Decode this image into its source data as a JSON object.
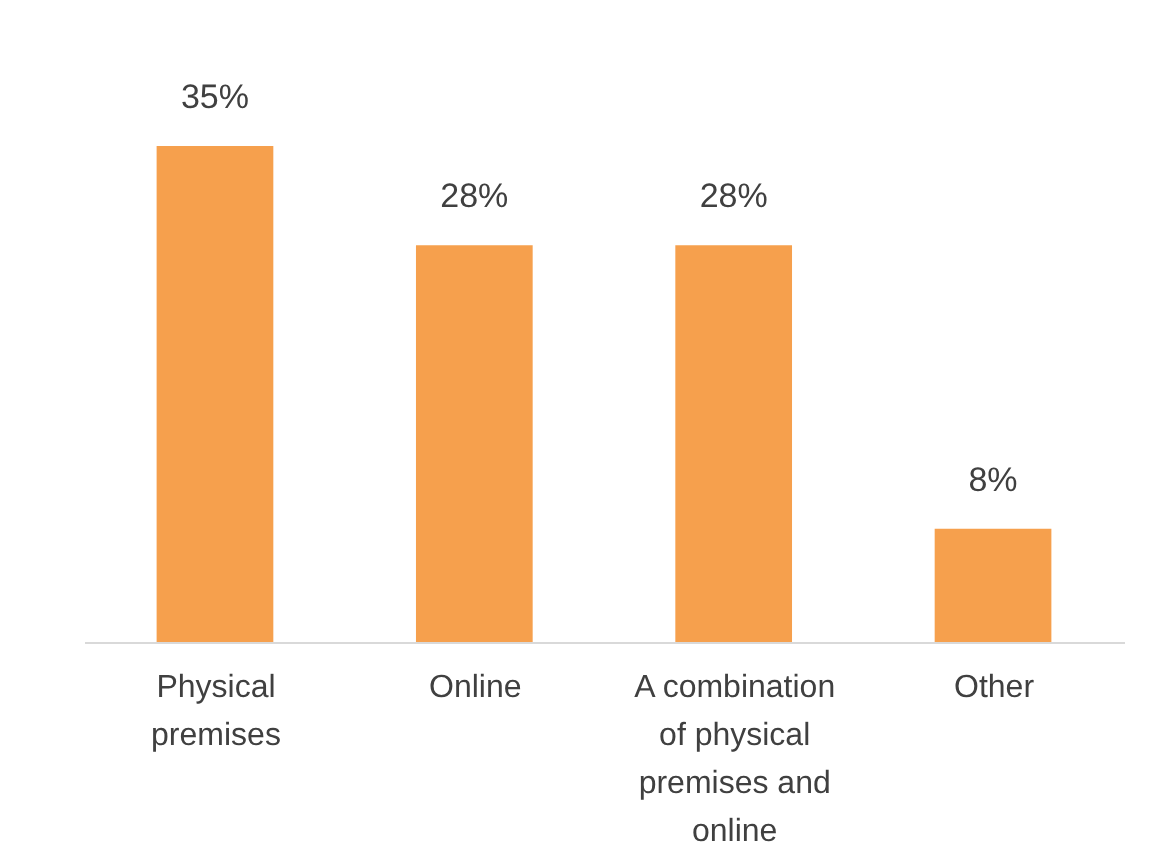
{
  "chart_data": {
    "type": "bar",
    "categories": [
      "Physical premises",
      "Online",
      "A combination of physical premises and online",
      "Other"
    ],
    "values": [
      35,
      28,
      28,
      8
    ],
    "color": "#f6a04d",
    "value_labels": [
      "35%",
      "28%",
      "28%",
      "8%"
    ],
    "grid": false
  }
}
